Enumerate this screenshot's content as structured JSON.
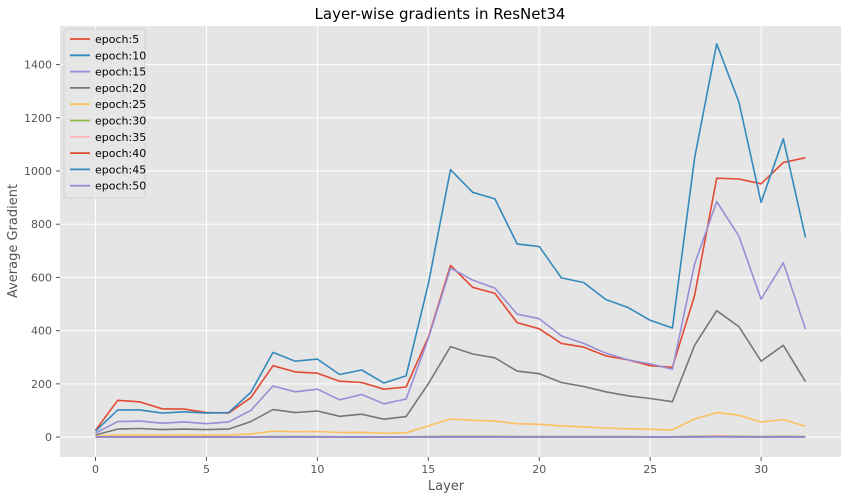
{
  "chart_data": {
    "type": "line",
    "title": "Layer-wise gradients in ResNet34",
    "xlabel": "Layer",
    "ylabel": "Average Gradient",
    "xlim": [
      -1.6,
      33.6
    ],
    "ylim": [
      -75,
      1545
    ],
    "xticks": [
      0,
      5,
      10,
      15,
      20,
      25,
      30
    ],
    "yticks": [
      0,
      200,
      400,
      600,
      800,
      1000,
      1200,
      1400
    ],
    "grid": true,
    "legend_position": "top-left",
    "x": [
      0,
      1,
      2,
      3,
      4,
      5,
      6,
      7,
      8,
      9,
      10,
      11,
      12,
      13,
      14,
      15,
      16,
      17,
      18,
      19,
      20,
      21,
      22,
      23,
      24,
      25,
      26,
      27,
      28,
      29,
      30,
      31,
      32
    ],
    "series": [
      {
        "name": "epoch:5",
        "color": "#E24A33",
        "values": [
          25,
          138,
          132,
          106,
          105,
          92,
          90,
          148,
          268,
          245,
          240,
          210,
          205,
          180,
          188,
          375,
          645,
          563,
          540,
          430,
          407,
          352,
          338,
          305,
          290,
          268,
          262,
          532,
          973,
          970,
          952,
          1032,
          1050
        ]
      },
      {
        "name": "epoch:10",
        "color": "#348ABD",
        "values": [
          22,
          102,
          102,
          90,
          95,
          90,
          92,
          168,
          318,
          285,
          293,
          235,
          252,
          203,
          230,
          575,
          1005,
          920,
          895,
          726,
          716,
          598,
          581,
          517,
          487,
          439,
          410,
          1049,
          1478,
          1259,
          882,
          1121,
          750
        ]
      },
      {
        "name": "epoch:15",
        "color": "#988ED5",
        "values": [
          15,
          58,
          60,
          52,
          57,
          50,
          57,
          100,
          192,
          170,
          180,
          140,
          160,
          125,
          143,
          370,
          635,
          590,
          560,
          462,
          445,
          380,
          352,
          315,
          290,
          275,
          255,
          650,
          885,
          755,
          518,
          655,
          405
        ]
      },
      {
        "name": "epoch:20",
        "color": "#777777",
        "values": [
          8,
          30,
          32,
          28,
          30,
          28,
          30,
          58,
          103,
          92,
          98,
          78,
          86,
          67,
          77,
          200,
          340,
          312,
          298,
          248,
          238,
          205,
          190,
          170,
          155,
          145,
          133,
          345,
          475,
          415,
          285,
          345,
          208
        ]
      },
      {
        "name": "epoch:25",
        "color": "#FBC15E",
        "values": [
          3,
          8,
          8,
          7,
          8,
          7,
          8,
          12,
          22,
          20,
          21,
          17,
          18,
          14,
          16,
          42,
          68,
          63,
          60,
          50,
          48,
          42,
          38,
          34,
          31,
          29,
          27,
          68,
          92,
          82,
          56,
          66,
          40
        ]
      },
      {
        "name": "epoch:30",
        "color": "#8EBA42",
        "values": [
          1,
          1,
          1,
          1,
          1,
          1,
          1,
          1,
          2,
          2,
          2,
          1,
          1,
          1,
          1,
          2,
          3,
          3,
          3,
          2,
          2,
          2,
          2,
          2,
          2,
          1,
          1,
          3,
          4,
          3,
          2,
          3,
          2
        ]
      },
      {
        "name": "epoch:35",
        "color": "#FFB5B8",
        "values": [
          0.5,
          0.5,
          0.5,
          0.5,
          0.5,
          0.5,
          0.5,
          0.5,
          1,
          1,
          1,
          1,
          1,
          1,
          1,
          1,
          2,
          2,
          2,
          1,
          1,
          1,
          1,
          1,
          1,
          1,
          1,
          2,
          3,
          2,
          1,
          2,
          1
        ]
      },
      {
        "name": "epoch:40",
        "color": "#E24A33",
        "values": [
          0.3,
          0.3,
          0.3,
          0.3,
          0.3,
          0.3,
          0.3,
          0.3,
          0.5,
          0.5,
          0.5,
          0.5,
          0.5,
          0.5,
          0.5,
          0.5,
          1,
          1,
          1,
          0.5,
          0.5,
          0.5,
          0.5,
          0.5,
          0.5,
          0.5,
          0.5,
          1,
          1.5,
          1,
          0.5,
          1,
          0.5
        ]
      },
      {
        "name": "epoch:45",
        "color": "#348ABD",
        "values": [
          0.2,
          0.2,
          0.2,
          0.2,
          0.2,
          0.2,
          0.2,
          0.2,
          0.3,
          0.3,
          0.3,
          0.3,
          0.3,
          0.3,
          0.3,
          0.3,
          0.5,
          0.5,
          0.5,
          0.3,
          0.3,
          0.3,
          0.3,
          0.3,
          0.3,
          0.3,
          0.3,
          0.5,
          1,
          0.5,
          0.3,
          0.5,
          0.3
        ]
      },
      {
        "name": "epoch:50",
        "color": "#988ED5",
        "values": [
          0.1,
          0.1,
          0.1,
          0.1,
          0.1,
          0.1,
          0.1,
          0.1,
          0.2,
          0.2,
          0.2,
          0.2,
          0.2,
          0.2,
          0.2,
          0.2,
          0.3,
          0.3,
          0.3,
          0.2,
          0.2,
          0.2,
          0.2,
          0.2,
          0.2,
          0.2,
          0.2,
          0.3,
          0.5,
          0.3,
          0.2,
          0.3,
          0.2
        ]
      }
    ]
  }
}
